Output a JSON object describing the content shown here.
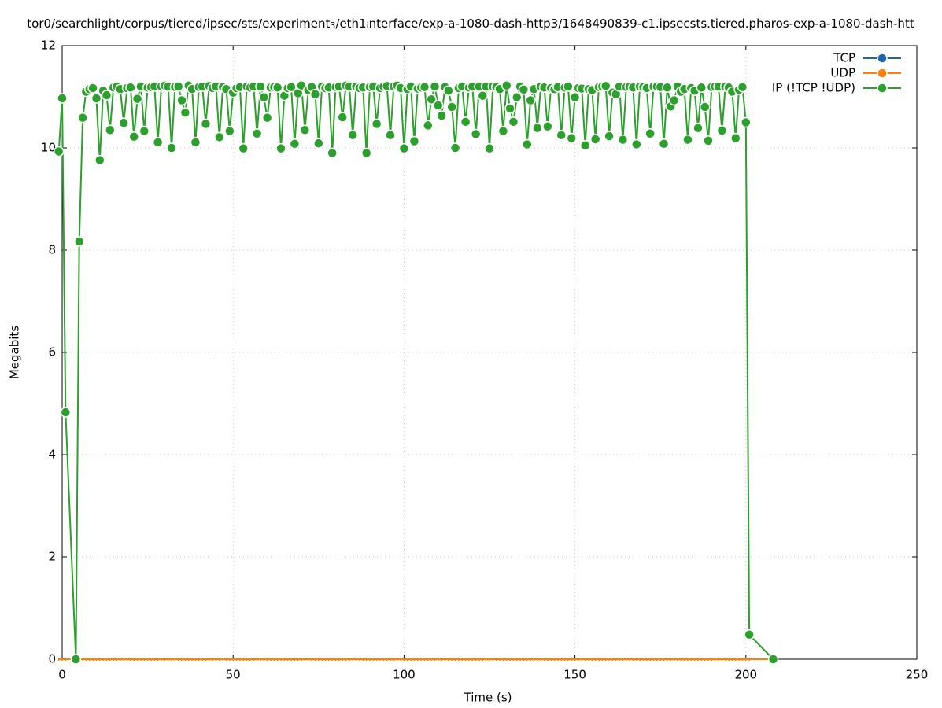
{
  "chart_data": {
    "type": "line",
    "title": [
      "tor0/searchlight/corpus/tiered/ipsec/sts/experiment",
      "3",
      "/eth1",
      "i",
      "nterface/exp-a-1080-dash-http3/1648490839-c1.ipsecsts.tiered.pharos-exp-a-1080-dash-htt"
    ],
    "x_label": "Time (s)",
    "y_label": "Megabits",
    "xlim": [
      0,
      250
    ],
    "xticks": [
      0,
      50,
      100,
      150,
      200,
      250
    ],
    "ylim": [
      0,
      12
    ],
    "yticks": [
      0,
      2,
      4,
      6,
      8,
      10,
      12
    ],
    "grid": true,
    "legend": "top-right",
    "x": [
      -1,
      0,
      1,
      4,
      5,
      6,
      7,
      8,
      9,
      10,
      11,
      12,
      13,
      14,
      15,
      16,
      17,
      18,
      19,
      20,
      21,
      22,
      23,
      24,
      25,
      26,
      27,
      28,
      29,
      30,
      31,
      32,
      33,
      34,
      35,
      36,
      37,
      38,
      39,
      40,
      41,
      42,
      43,
      44,
      45,
      46,
      47,
      48,
      49,
      50,
      51,
      52,
      53,
      54,
      55,
      56,
      57,
      58,
      59,
      60,
      61,
      62,
      63,
      64,
      65,
      66,
      67,
      68,
      69,
      70,
      71,
      72,
      73,
      74,
      75,
      76,
      77,
      78,
      79,
      80,
      81,
      82,
      83,
      84,
      85,
      86,
      87,
      88,
      89,
      90,
      91,
      92,
      93,
      94,
      95,
      96,
      97,
      98,
      99,
      100,
      101,
      102,
      103,
      104,
      105,
      106,
      107,
      108,
      109,
      110,
      111,
      112,
      113,
      114,
      115,
      116,
      117,
      118,
      119,
      120,
      121,
      122,
      123,
      124,
      125,
      126,
      127,
      128,
      129,
      130,
      131,
      132,
      133,
      134,
      135,
      136,
      137,
      138,
      139,
      140,
      141,
      142,
      143,
      144,
      145,
      146,
      147,
      148,
      149,
      150,
      151,
      152,
      153,
      154,
      155,
      156,
      157,
      158,
      159,
      160,
      161,
      162,
      163,
      164,
      165,
      166,
      167,
      168,
      169,
      170,
      171,
      172,
      173,
      174,
      175,
      176,
      177,
      178,
      179,
      180,
      181,
      182,
      183,
      184,
      185,
      186,
      187,
      188,
      189,
      190,
      191,
      192,
      193,
      194,
      195,
      196,
      197,
      198,
      199,
      200,
      201,
      208
    ],
    "series": [
      {
        "name": "TCP",
        "color": "#1f64b0",
        "values": [
          null,
          null,
          null,
          null,
          null,
          null,
          null,
          null,
          null,
          null,
          null,
          null,
          null,
          null,
          null,
          null,
          null,
          null,
          null,
          null,
          null,
          null,
          null,
          null,
          null,
          null,
          null,
          null,
          null,
          null,
          null,
          null,
          null,
          null,
          null,
          null,
          null,
          null,
          null,
          null,
          null,
          null,
          null,
          null,
          null,
          null,
          null,
          null,
          null,
          null,
          null,
          null,
          null,
          null,
          null,
          null,
          null,
          null,
          null,
          null,
          null,
          null,
          null,
          null,
          null,
          null,
          null,
          null,
          null,
          null,
          null,
          null,
          null,
          null,
          null,
          null,
          null,
          null,
          null,
          null,
          null,
          null,
          null,
          null,
          null,
          null,
          null,
          null,
          null,
          null,
          null,
          null,
          null,
          null,
          null,
          null,
          null,
          null,
          null,
          null,
          null,
          null,
          null,
          null,
          null,
          null,
          null,
          null,
          null,
          null,
          null,
          null,
          null,
          null,
          null,
          null,
          null,
          null,
          null,
          null,
          null,
          null,
          null,
          null,
          null,
          null,
          null,
          null,
          null,
          null,
          null,
          null,
          null,
          null,
          null,
          null,
          null,
          null,
          null,
          null,
          null,
          null,
          null,
          null,
          null,
          null,
          null,
          null,
          null,
          null,
          null,
          null,
          null,
          null,
          null,
          null,
          null,
          null,
          null,
          null,
          null,
          null,
          null,
          null,
          null,
          null,
          null,
          null,
          null,
          null,
          null,
          null,
          null,
          null,
          null,
          null,
          null,
          null,
          null,
          null,
          null,
          null,
          null,
          null,
          null,
          null,
          null,
          null,
          null,
          null,
          null,
          null,
          null,
          null,
          null,
          null,
          null,
          null,
          null,
          null,
          null,
          null
        ]
      },
      {
        "name": "UDP",
        "color": "#ff7f0e",
        "values": [
          0,
          0,
          0,
          0,
          0,
          0,
          0,
          0,
          0,
          0,
          0,
          0,
          0,
          0,
          0,
          0,
          0,
          0,
          0,
          0,
          0,
          0,
          0,
          0,
          0,
          0,
          0,
          0,
          0,
          0,
          0,
          0,
          0,
          0,
          0,
          0,
          0,
          0,
          0,
          0,
          0,
          0,
          0,
          0,
          0,
          0,
          0,
          0,
          0,
          0,
          0,
          0,
          0,
          0,
          0,
          0,
          0,
          0,
          0,
          0,
          0,
          0,
          0,
          0,
          0,
          0,
          0,
          0,
          0,
          0,
          0,
          0,
          0,
          0,
          0,
          0,
          0,
          0,
          0,
          0,
          0,
          0,
          0,
          0,
          0,
          0,
          0,
          0,
          0,
          0,
          0,
          0,
          0,
          0,
          0,
          0,
          0,
          0,
          0,
          0,
          0,
          0,
          0,
          0,
          0,
          0,
          0,
          0,
          0,
          0,
          0,
          0,
          0,
          0,
          0,
          0,
          0,
          0,
          0,
          0,
          0,
          0,
          0,
          0,
          0,
          0,
          0,
          0,
          0,
          0,
          0,
          0,
          0,
          0,
          0,
          0,
          0,
          0,
          0,
          0,
          0,
          0,
          0,
          0,
          0,
          0,
          0,
          0,
          0,
          0,
          0,
          0,
          0,
          0,
          0,
          0,
          0,
          0,
          0,
          0,
          0,
          0,
          0,
          0,
          0,
          0,
          0,
          0,
          0,
          0,
          0,
          0,
          0,
          0,
          0,
          0,
          0,
          0,
          0,
          0,
          0,
          0,
          0,
          0,
          0,
          0,
          0,
          0,
          0,
          0,
          0,
          0,
          0,
          0,
          0,
          0,
          0,
          0,
          0,
          0,
          0,
          0
        ]
      },
      {
        "name": "IP (!TCP  !UDP)",
        "color": "#2ca02c",
        "values": [
          9.93,
          10.97,
          4.83,
          0,
          8.17,
          10.59,
          11.1,
          11.15,
          11.17,
          10.97,
          9.76,
          11.12,
          11.03,
          10.35,
          11.18,
          11.2,
          11.15,
          10.49,
          11.17,
          11.18,
          10.22,
          10.96,
          11.2,
          10.33,
          11.18,
          11.19,
          11.2,
          10.11,
          11.2,
          11.22,
          11.2,
          10.0,
          11.19,
          11.2,
          10.93,
          10.69,
          11.22,
          11.15,
          10.11,
          11.19,
          11.2,
          10.47,
          11.21,
          11.17,
          11.2,
          10.21,
          11.19,
          11.15,
          10.33,
          11.08,
          11.17,
          11.19,
          9.99,
          11.2,
          11.18,
          11.2,
          10.28,
          11.2,
          10.99,
          10.59,
          11.18,
          11.19,
          11.18,
          9.99,
          11.02,
          11.17,
          11.19,
          10.08,
          11.07,
          11.22,
          10.35,
          11.13,
          11.19,
          11.05,
          10.09,
          11.2,
          11.17,
          11.18,
          9.9,
          11.19,
          11.2,
          10.6,
          11.22,
          11.2,
          10.25,
          11.2,
          11.17,
          11.18,
          9.9,
          11.19,
          11.2,
          10.47,
          11.17,
          11.2,
          11.21,
          10.25,
          11.2,
          11.22,
          11.17,
          9.99,
          11.15,
          11.2,
          10.13,
          11.16,
          11.18,
          11.19,
          10.44,
          10.95,
          11.2,
          10.83,
          10.63,
          11.19,
          11.12,
          10.8,
          10.0,
          11.17,
          11.2,
          10.51,
          11.18,
          11.2,
          10.27,
          11.2,
          11.02,
          11.2,
          9.99,
          11.2,
          11.19,
          11.15,
          10.33,
          11.22,
          10.77,
          10.51,
          10.99,
          11.2,
          11.14,
          10.07,
          10.93,
          11.15,
          10.39,
          11.2,
          11.18,
          10.42,
          11.17,
          11.15,
          11.19,
          10.25,
          11.18,
          11.2,
          10.19,
          10.99,
          11.17,
          11.16,
          10.05,
          11.15,
          11.13,
          10.17,
          11.19,
          11.2,
          11.21,
          10.23,
          11.08,
          11.05,
          11.2,
          10.16,
          11.19,
          11.2,
          11.18,
          10.07,
          11.2,
          11.19,
          11.17,
          10.28,
          11.2,
          11.2,
          11.19,
          10.08,
          11.18,
          10.81,
          10.93,
          11.2,
          11.1,
          11.15,
          10.16,
          11.17,
          11.12,
          10.39,
          11.18,
          10.8,
          10.14,
          11.19,
          11.2,
          11.2,
          10.34,
          11.2,
          11.18,
          11.1,
          10.19,
          11.14,
          11.19,
          10.5,
          0.48,
          0
        ]
      }
    ]
  }
}
